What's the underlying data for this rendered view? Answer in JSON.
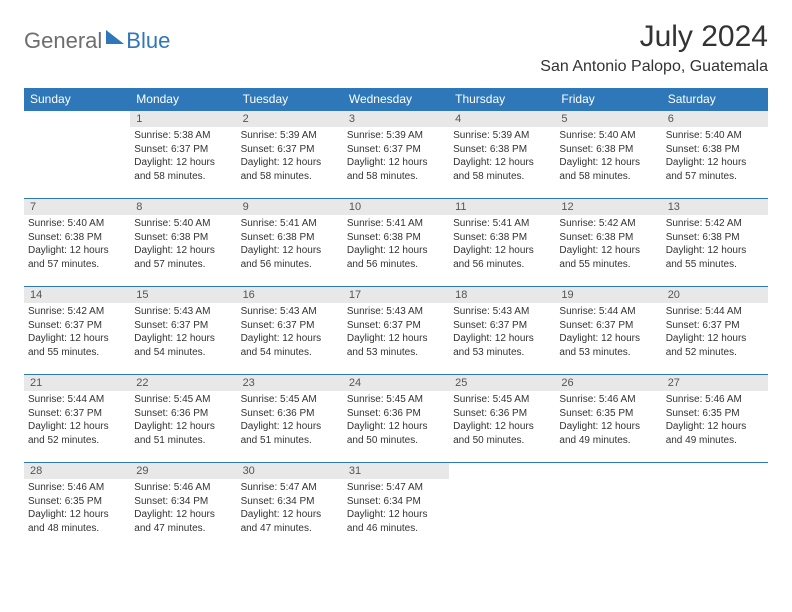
{
  "logo": {
    "text1": "General",
    "text2": "Blue"
  },
  "title": "July 2024",
  "location": "San Antonio Palopo, Guatemala",
  "colors": {
    "header_bg": "#2e77b8",
    "header_text": "#ffffff",
    "daynum_bg": "#e8e8e8",
    "border": "#2e77b8",
    "logo_gray": "#6e6e6e",
    "logo_blue": "#2e77b8"
  },
  "weekdays": [
    "Sunday",
    "Monday",
    "Tuesday",
    "Wednesday",
    "Thursday",
    "Friday",
    "Saturday"
  ],
  "start_offset": 1,
  "days": [
    {
      "n": 1,
      "sr": "5:38 AM",
      "ss": "6:37 PM",
      "dl": "12 hours and 58 minutes."
    },
    {
      "n": 2,
      "sr": "5:39 AM",
      "ss": "6:37 PM",
      "dl": "12 hours and 58 minutes."
    },
    {
      "n": 3,
      "sr": "5:39 AM",
      "ss": "6:37 PM",
      "dl": "12 hours and 58 minutes."
    },
    {
      "n": 4,
      "sr": "5:39 AM",
      "ss": "6:38 PM",
      "dl": "12 hours and 58 minutes."
    },
    {
      "n": 5,
      "sr": "5:40 AM",
      "ss": "6:38 PM",
      "dl": "12 hours and 58 minutes."
    },
    {
      "n": 6,
      "sr": "5:40 AM",
      "ss": "6:38 PM",
      "dl": "12 hours and 57 minutes."
    },
    {
      "n": 7,
      "sr": "5:40 AM",
      "ss": "6:38 PM",
      "dl": "12 hours and 57 minutes."
    },
    {
      "n": 8,
      "sr": "5:40 AM",
      "ss": "6:38 PM",
      "dl": "12 hours and 57 minutes."
    },
    {
      "n": 9,
      "sr": "5:41 AM",
      "ss": "6:38 PM",
      "dl": "12 hours and 56 minutes."
    },
    {
      "n": 10,
      "sr": "5:41 AM",
      "ss": "6:38 PM",
      "dl": "12 hours and 56 minutes."
    },
    {
      "n": 11,
      "sr": "5:41 AM",
      "ss": "6:38 PM",
      "dl": "12 hours and 56 minutes."
    },
    {
      "n": 12,
      "sr": "5:42 AM",
      "ss": "6:38 PM",
      "dl": "12 hours and 55 minutes."
    },
    {
      "n": 13,
      "sr": "5:42 AM",
      "ss": "6:38 PM",
      "dl": "12 hours and 55 minutes."
    },
    {
      "n": 14,
      "sr": "5:42 AM",
      "ss": "6:37 PM",
      "dl": "12 hours and 55 minutes."
    },
    {
      "n": 15,
      "sr": "5:43 AM",
      "ss": "6:37 PM",
      "dl": "12 hours and 54 minutes."
    },
    {
      "n": 16,
      "sr": "5:43 AM",
      "ss": "6:37 PM",
      "dl": "12 hours and 54 minutes."
    },
    {
      "n": 17,
      "sr": "5:43 AM",
      "ss": "6:37 PM",
      "dl": "12 hours and 53 minutes."
    },
    {
      "n": 18,
      "sr": "5:43 AM",
      "ss": "6:37 PM",
      "dl": "12 hours and 53 minutes."
    },
    {
      "n": 19,
      "sr": "5:44 AM",
      "ss": "6:37 PM",
      "dl": "12 hours and 53 minutes."
    },
    {
      "n": 20,
      "sr": "5:44 AM",
      "ss": "6:37 PM",
      "dl": "12 hours and 52 minutes."
    },
    {
      "n": 21,
      "sr": "5:44 AM",
      "ss": "6:37 PM",
      "dl": "12 hours and 52 minutes."
    },
    {
      "n": 22,
      "sr": "5:45 AM",
      "ss": "6:36 PM",
      "dl": "12 hours and 51 minutes."
    },
    {
      "n": 23,
      "sr": "5:45 AM",
      "ss": "6:36 PM",
      "dl": "12 hours and 51 minutes."
    },
    {
      "n": 24,
      "sr": "5:45 AM",
      "ss": "6:36 PM",
      "dl": "12 hours and 50 minutes."
    },
    {
      "n": 25,
      "sr": "5:45 AM",
      "ss": "6:36 PM",
      "dl": "12 hours and 50 minutes."
    },
    {
      "n": 26,
      "sr": "5:46 AM",
      "ss": "6:35 PM",
      "dl": "12 hours and 49 minutes."
    },
    {
      "n": 27,
      "sr": "5:46 AM",
      "ss": "6:35 PM",
      "dl": "12 hours and 49 minutes."
    },
    {
      "n": 28,
      "sr": "5:46 AM",
      "ss": "6:35 PM",
      "dl": "12 hours and 48 minutes."
    },
    {
      "n": 29,
      "sr": "5:46 AM",
      "ss": "6:34 PM",
      "dl": "12 hours and 47 minutes."
    },
    {
      "n": 30,
      "sr": "5:47 AM",
      "ss": "6:34 PM",
      "dl": "12 hours and 47 minutes."
    },
    {
      "n": 31,
      "sr": "5:47 AM",
      "ss": "6:34 PM",
      "dl": "12 hours and 46 minutes."
    }
  ],
  "labels": {
    "sunrise": "Sunrise:",
    "sunset": "Sunset:",
    "daylight": "Daylight:"
  }
}
